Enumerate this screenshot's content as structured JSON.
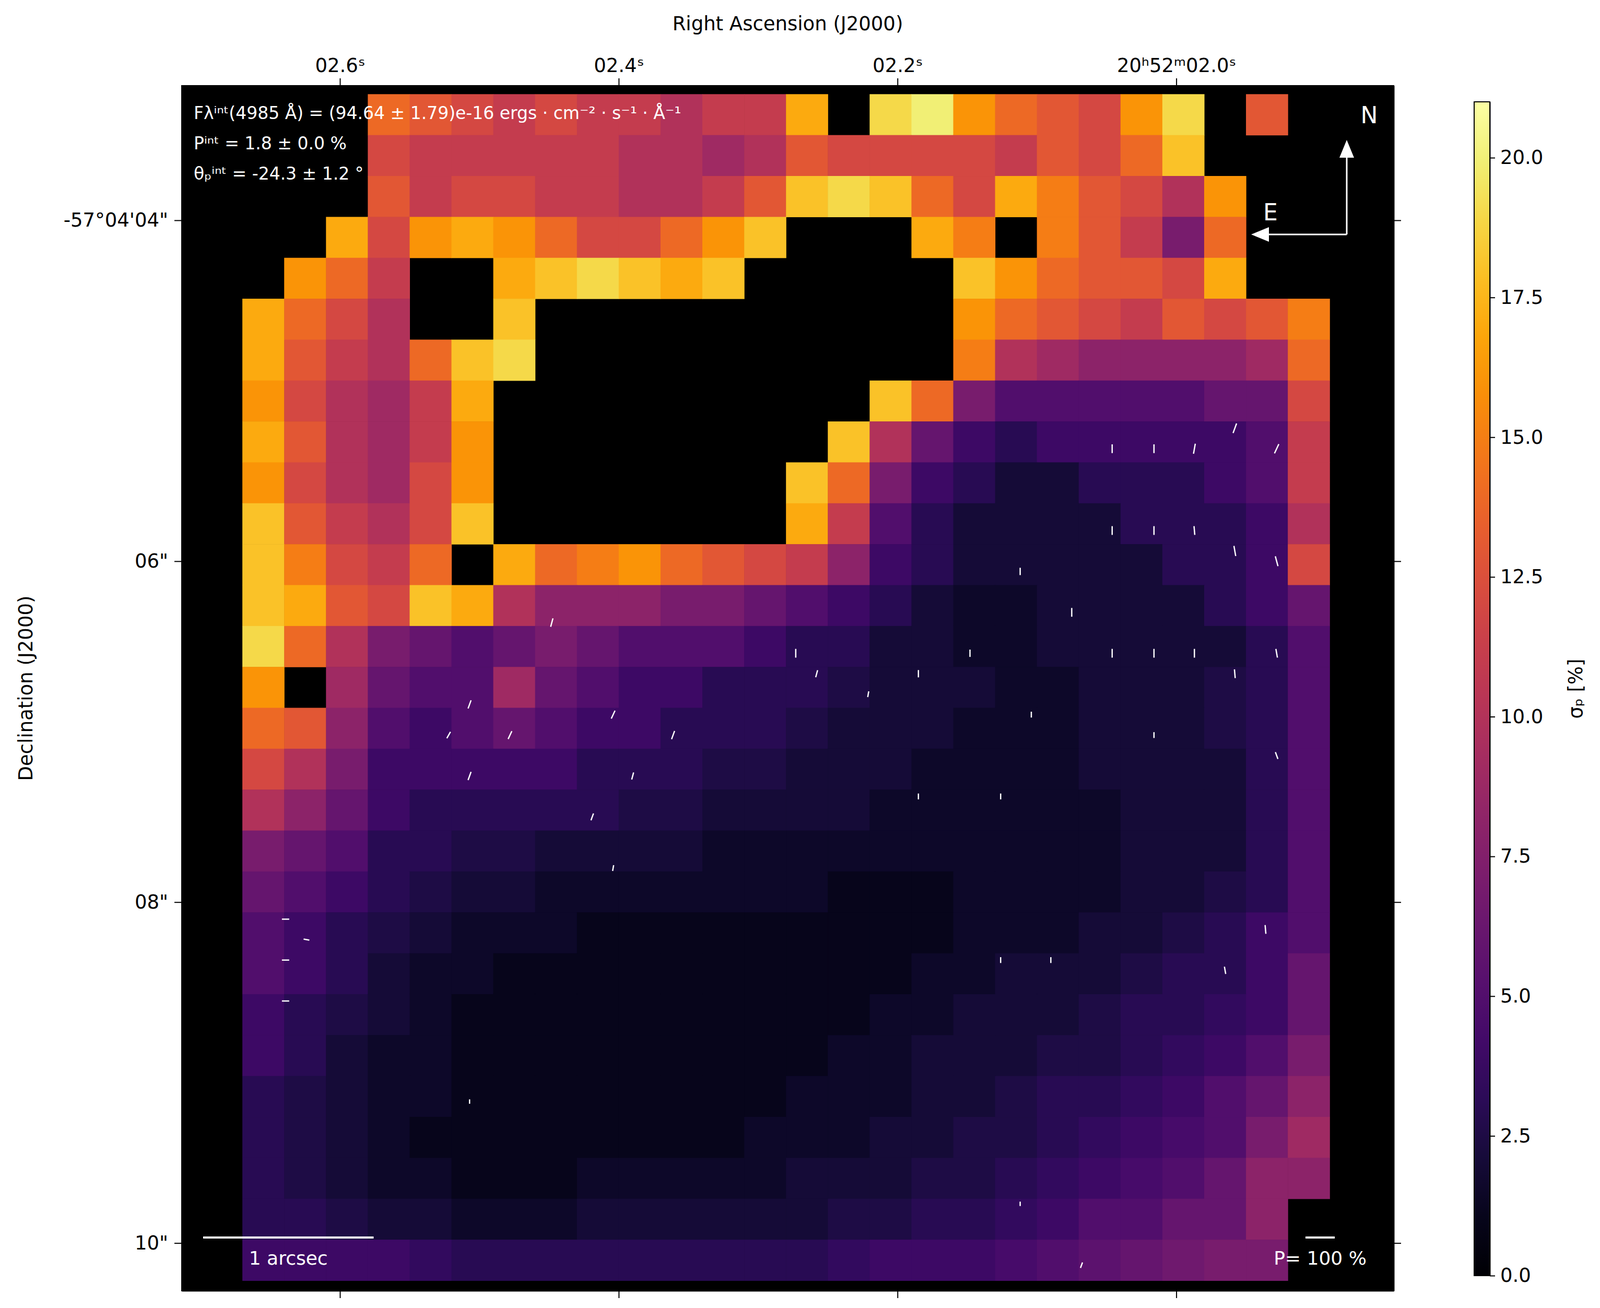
{
  "chart_data": {
    "type": "heatmap",
    "x_label": "Right Ascension (J2000)",
    "y_label": "Declination (J2000)",
    "xlim": [
      2.7135,
      1.844
    ],
    "ylim": [
      3.21,
      10.28
    ],
    "xticks": [
      {
        "value": 2.6,
        "label": "02.6ˢ"
      },
      {
        "value": 2.4,
        "label": "02.4ˢ"
      },
      {
        "value": 2.2,
        "label": "02.2ˢ"
      },
      {
        "value": 2.0,
        "label": "20ʰ52ᵐ02.0ˢ"
      }
    ],
    "yticks": [
      {
        "value": 4,
        "label": "-57°04'04\""
      },
      {
        "value": 6,
        "label": "06\""
      },
      {
        "value": 8,
        "label": "08\""
      },
      {
        "value": 10,
        "label": "10\""
      }
    ],
    "grid": false,
    "heatmap": {
      "x": [
        2.655,
        2.625,
        2.595,
        2.565,
        2.535,
        2.505,
        2.475,
        2.445,
        2.415,
        2.385,
        2.355,
        2.325,
        2.295,
        2.265,
        2.235,
        2.205,
        2.175,
        2.145,
        2.115,
        2.085,
        2.055,
        2.025,
        1.995,
        1.965,
        1.935,
        1.905
      ],
      "y": [
        3.38,
        3.62,
        3.86,
        4.1,
        4.34,
        4.58,
        4.82,
        5.06,
        5.3,
        5.54,
        5.78,
        6.02,
        6.26,
        6.5,
        6.74,
        6.98,
        7.22,
        7.46,
        7.7,
        7.94,
        8.18,
        8.42,
        8.66,
        8.9,
        9.14,
        9.38,
        9.62,
        9.86,
        10.1
      ],
      "z": [
        [
          null,
          null,
          null,
          14,
          13,
          12,
          11,
          12,
          11,
          11,
          10,
          11,
          11,
          17,
          null,
          19,
          20,
          16,
          14,
          13,
          12,
          16,
          19,
          null,
          13,
          null
        ],
        [
          null,
          null,
          null,
          12,
          11,
          11,
          11,
          11,
          11,
          10,
          10,
          9,
          10,
          13,
          12,
          12,
          12,
          12,
          11,
          13,
          12,
          14,
          18,
          null,
          null,
          null
        ],
        [
          null,
          null,
          null,
          13,
          11,
          12,
          12,
          11,
          11,
          10,
          10,
          11,
          13,
          18,
          19,
          18,
          14,
          12,
          17,
          15,
          13,
          12,
          10,
          16,
          null,
          null
        ],
        [
          null,
          null,
          17,
          12,
          16,
          17,
          16,
          14,
          12,
          12,
          14,
          16,
          18,
          null,
          null,
          null,
          17,
          15,
          null,
          15,
          13,
          11,
          7,
          14,
          null,
          null
        ],
        [
          null,
          16,
          14,
          11,
          null,
          null,
          17,
          18,
          19,
          18,
          17,
          18,
          null,
          null,
          null,
          null,
          null,
          18,
          16,
          14,
          13,
          13,
          12,
          17,
          null,
          null
        ],
        [
          17,
          14,
          12,
          10,
          null,
          null,
          18,
          null,
          null,
          null,
          null,
          null,
          null,
          null,
          null,
          null,
          null,
          16,
          14,
          13,
          12,
          11,
          13,
          12,
          13,
          15
        ],
        [
          17,
          13,
          11,
          10,
          14,
          18,
          19,
          null,
          null,
          null,
          null,
          null,
          null,
          null,
          null,
          null,
          null,
          15,
          10,
          9,
          8,
          8,
          8,
          8,
          9,
          14
        ],
        [
          16,
          12,
          10,
          9,
          11,
          17,
          null,
          null,
          null,
          null,
          null,
          null,
          null,
          null,
          null,
          18,
          14,
          7,
          5,
          5,
          5,
          5,
          5,
          6,
          6,
          12
        ],
        [
          17,
          13,
          10,
          9,
          11,
          16,
          null,
          null,
          null,
          null,
          null,
          null,
          null,
          null,
          18,
          10,
          6,
          4,
          3,
          4,
          4,
          4,
          4,
          4,
          5,
          11
        ],
        [
          16,
          12,
          10,
          9,
          12,
          16,
          null,
          null,
          null,
          null,
          null,
          null,
          null,
          18,
          14,
          7,
          4,
          3,
          2,
          2,
          3,
          3,
          3,
          4,
          5,
          11
        ],
        [
          18,
          13,
          11,
          10,
          12,
          18,
          null,
          null,
          null,
          null,
          null,
          null,
          null,
          17,
          11,
          5,
          3,
          2,
          2,
          2,
          2,
          3,
          3,
          3,
          4,
          10
        ],
        [
          18,
          15,
          12,
          11,
          14,
          null,
          17,
          14,
          15,
          16,
          14,
          13,
          12,
          11,
          8,
          4,
          3,
          2,
          2,
          2,
          2,
          2,
          3,
          3,
          4,
          12
        ],
        [
          18,
          17,
          13,
          12,
          18,
          17,
          10,
          8,
          8,
          8,
          7,
          7,
          6,
          5,
          4,
          3,
          2,
          1.5,
          1.5,
          2,
          2,
          2,
          2,
          3,
          4,
          6
        ],
        [
          19,
          14,
          10,
          7,
          6,
          5,
          6,
          7,
          6,
          5,
          5,
          5,
          4,
          3,
          3,
          2,
          2,
          1.5,
          1.5,
          2,
          2,
          2,
          2,
          2,
          3,
          5
        ],
        [
          16,
          null,
          9,
          6,
          5,
          5,
          9,
          6,
          5,
          4,
          4,
          3,
          3,
          3,
          2.5,
          2,
          2,
          2,
          1.5,
          1.5,
          2,
          2,
          2,
          2.5,
          3,
          5
        ],
        [
          14,
          13,
          8,
          5,
          4,
          5,
          6,
          5,
          4,
          4,
          3,
          3,
          3,
          2.5,
          2,
          2,
          2,
          1.5,
          1.5,
          1.5,
          2,
          2,
          2,
          2.5,
          3,
          5
        ],
        [
          12,
          10,
          7,
          4,
          4,
          4,
          4,
          4,
          3,
          3,
          3,
          2.5,
          2.5,
          2,
          2,
          2,
          1.5,
          1.5,
          1.5,
          1.5,
          2,
          2,
          2,
          2,
          3,
          5
        ],
        [
          10,
          8,
          6,
          4,
          3,
          3,
          3,
          3,
          3,
          2.5,
          2.5,
          2,
          2,
          2,
          2,
          1.5,
          1.5,
          1.5,
          1.5,
          1.5,
          1.5,
          2,
          2,
          2,
          3,
          5
        ],
        [
          7,
          6,
          5,
          3,
          3,
          2.5,
          2.5,
          2,
          2,
          2,
          2,
          1.5,
          1.5,
          1.5,
          1.5,
          1.5,
          1.5,
          1.5,
          1.5,
          1.5,
          1.5,
          2,
          2,
          2,
          3,
          5
        ],
        [
          6,
          5,
          4,
          3,
          2.5,
          2,
          2,
          1.5,
          1.5,
          1.5,
          1.5,
          1.5,
          1.5,
          1.5,
          1,
          1,
          1,
          1.5,
          1.5,
          1.5,
          1.5,
          2,
          2,
          2.5,
          3,
          5
        ],
        [
          5,
          4,
          3,
          2.5,
          2,
          1.5,
          1.5,
          1.5,
          1,
          1,
          1,
          1,
          1,
          1,
          1,
          1,
          1,
          1.5,
          1.5,
          1.5,
          2,
          2,
          2.5,
          3,
          4,
          5
        ],
        [
          5,
          4,
          3,
          2,
          1.5,
          1.5,
          1,
          1,
          1,
          1,
          1,
          1,
          1,
          1,
          1,
          1,
          1.5,
          1.5,
          2,
          2,
          2,
          2.5,
          3,
          3,
          4,
          6
        ],
        [
          4,
          3,
          2.5,
          2,
          1.5,
          1,
          1,
          1,
          1,
          1,
          1,
          1,
          1,
          1,
          1,
          1.5,
          1.5,
          2,
          2,
          2,
          2.5,
          3,
          3,
          3.5,
          4,
          6
        ],
        [
          4,
          3,
          2,
          1.5,
          1.5,
          1,
          1,
          1,
          1,
          1,
          1,
          1,
          1,
          1,
          1.5,
          1.5,
          2,
          2,
          2,
          2.5,
          2.5,
          3,
          3.5,
          4,
          5,
          7
        ],
        [
          3,
          2.5,
          2,
          1.5,
          1.5,
          1,
          1,
          1,
          1,
          1,
          1,
          1,
          1,
          1.5,
          1.5,
          1.5,
          2,
          2,
          2.5,
          3,
          3,
          3.5,
          4,
          5,
          6,
          8
        ],
        [
          3,
          2.5,
          2,
          1.5,
          1,
          1,
          1,
          1,
          1,
          1,
          1,
          1,
          1.5,
          1.5,
          1.5,
          2,
          2,
          2.5,
          2.5,
          3,
          3.5,
          4,
          4.5,
          5,
          7,
          9
        ],
        [
          3,
          2.5,
          2,
          1.5,
          1.5,
          1,
          1,
          1,
          1.5,
          1.5,
          1.5,
          1.5,
          1.5,
          2,
          2,
          2,
          2.5,
          2.5,
          3,
          3.5,
          4,
          4.5,
          5,
          6,
          8,
          8
        ],
        [
          3,
          3,
          2.5,
          2,
          2,
          1.5,
          1.5,
          1.5,
          2,
          2,
          2,
          2,
          2,
          2,
          2.5,
          2.5,
          3,
          3,
          3.5,
          4,
          5,
          5,
          6,
          6,
          8,
          null
        ],
        [
          4,
          4,
          4,
          4,
          3.5,
          3,
          3,
          3,
          3,
          3,
          3,
          3,
          3,
          3,
          3.5,
          4,
          4,
          4,
          4.5,
          5,
          5.5,
          6,
          6.5,
          7,
          7,
          null
        ]
      ]
    },
    "colorbar": {
      "label": "σₚ [%]",
      "range": [
        0,
        21
      ],
      "ticks": [
        {
          "value": 0,
          "label": "0.0"
        },
        2.5,
        {
          "value": 5,
          "label": "5.0"
        },
        7.5,
        {
          "value": 10,
          "label": "10.0"
        },
        12.5,
        {
          "value": 15,
          "label": "15.0"
        },
        17.5,
        {
          "value": 20,
          "label": "20.0"
        }
      ]
    },
    "vectors": {
      "x": [
        2.046,
        2.016,
        1.987,
        1.958,
        1.928,
        2.046,
        2.016,
        1.987,
        1.958,
        1.928,
        2.075,
        2.046,
        2.016,
        1.987,
        1.958,
        1.928,
        2.112,
        2.148,
        2.185,
        2.221,
        2.258,
        2.273,
        2.104,
        2.016,
        1.928,
        2.126,
        2.185,
        2.361,
        2.39,
        2.419,
        2.404,
        2.507,
        2.522,
        2.478,
        2.507,
        2.448,
        2.639,
        2.639,
        2.639,
        2.624,
        1.936,
        1.965,
        2.09,
        2.126,
        2.404,
        2.112,
        2.507,
        2.068
      ],
      "y": [
        5.34,
        5.34,
        5.34,
        5.22,
        5.34,
        5.82,
        5.82,
        5.82,
        5.94,
        6.0,
        6.3,
        6.54,
        6.54,
        6.54,
        6.66,
        6.54,
        6.06,
        6.54,
        6.66,
        6.78,
        6.66,
        6.54,
        6.9,
        7.02,
        7.14,
        7.38,
        7.38,
        7.02,
        7.26,
        7.5,
        6.9,
        7.26,
        7.02,
        7.02,
        6.84,
        6.36,
        8.1,
        8.34,
        8.58,
        8.22,
        8.16,
        8.4,
        8.34,
        8.34,
        7.8,
        9.77,
        9.17,
        10.13
      ],
      "p": [
        30,
        30,
        35,
        35,
        35,
        30,
        30,
        30,
        35,
        35,
        30,
        30,
        30,
        30,
        30,
        30,
        25,
        25,
        25,
        20,
        25,
        30,
        20,
        20,
        25,
        20,
        20,
        30,
        25,
        25,
        30,
        30,
        25,
        30,
        30,
        30,
        25,
        25,
        25,
        20,
        30,
        25,
        20,
        20,
        20,
        15,
        15,
        20
      ],
      "angle": [
        0,
        0,
        -10,
        -20,
        -25,
        0,
        0,
        5,
        10,
        15,
        0,
        0,
        0,
        0,
        5,
        10,
        0,
        0,
        0,
        -10,
        -15,
        0,
        0,
        0,
        20,
        0,
        0,
        -20,
        -15,
        -20,
        -25,
        -20,
        -30,
        -25,
        -20,
        -15,
        90,
        90,
        90,
        80,
        5,
        10,
        0,
        0,
        -10,
        0,
        0,
        -20
      ]
    },
    "vector_scale": {
      "value": 100,
      "label": "P= 100 %"
    },
    "scale_bar": {
      "value": 1,
      "label": "1 arcsec"
    },
    "annotations": [
      "Fλⁱⁿᵗ(4985 Å) = (94.64 ± 1.79)e-16 ergs · cm⁻² · s⁻¹ · Å⁻¹",
      "Pⁱⁿᵗ = 1.8 ± 0.0 %",
      "θₚⁱⁿᵗ = -24.3 ± 1.2 °"
    ],
    "compass": {
      "north": "N",
      "east": "E"
    }
  }
}
